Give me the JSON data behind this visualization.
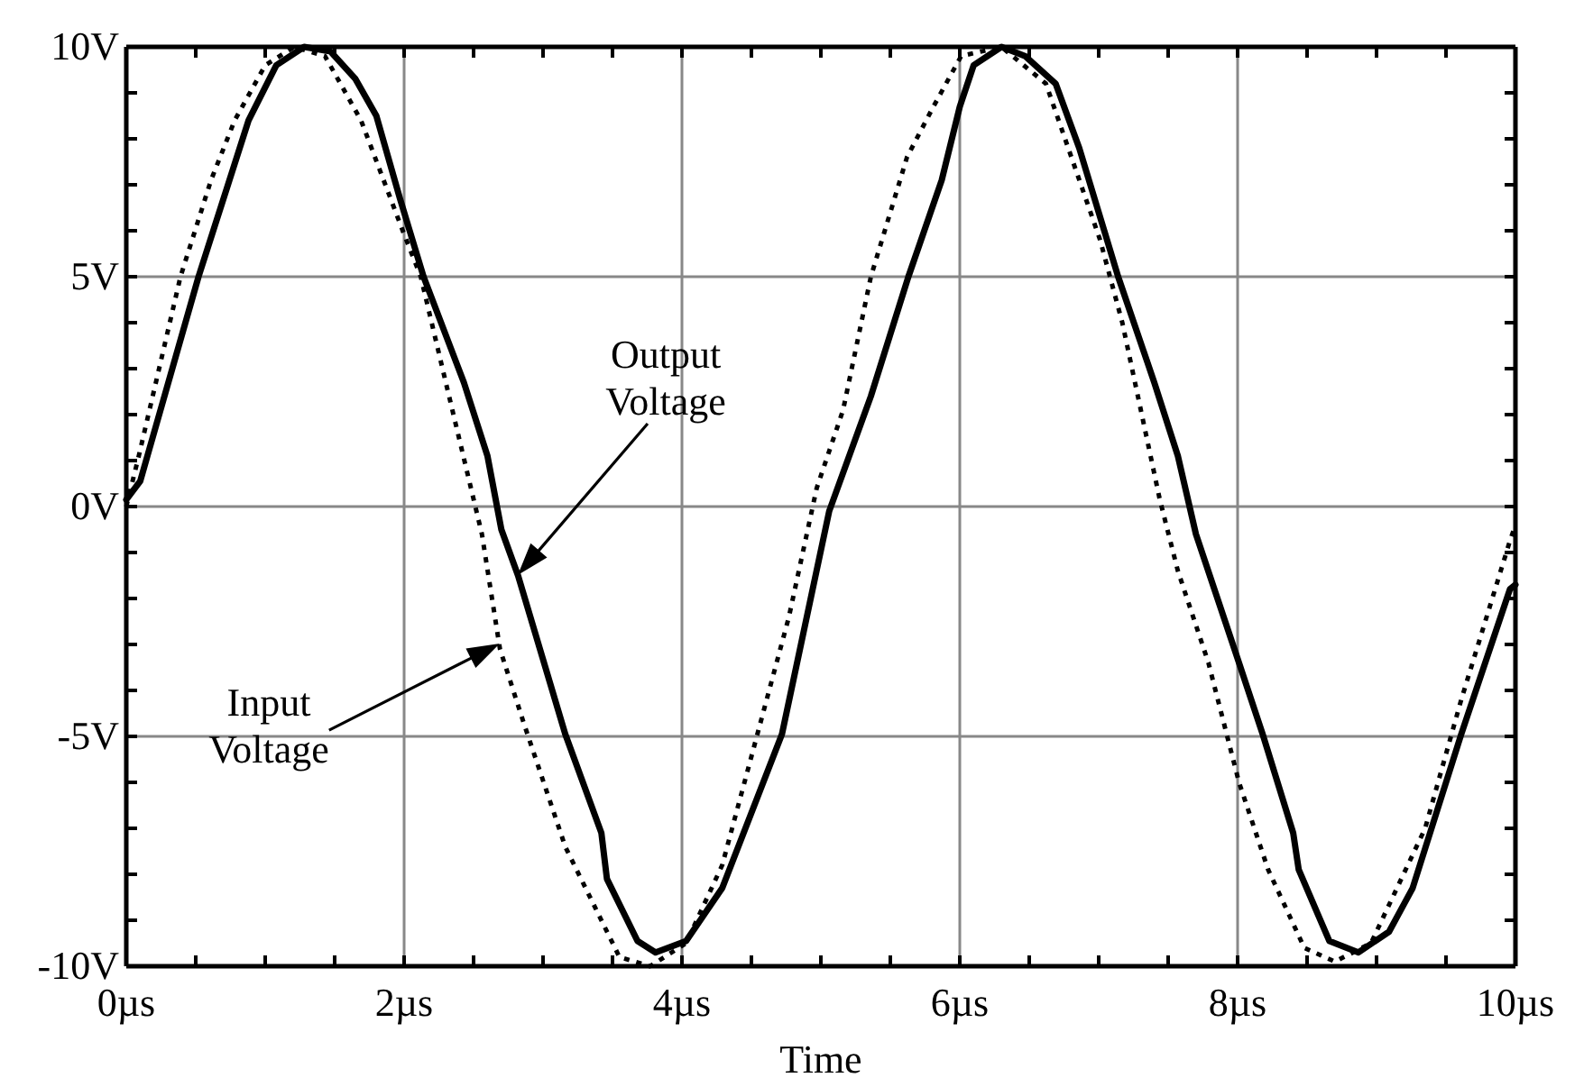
{
  "chart_data": {
    "type": "line",
    "xlabel": "Time",
    "xlim": [
      0,
      10
    ],
    "ylim": [
      -10,
      10
    ],
    "xticks": [
      {
        "value": 0,
        "label": "0µs"
      },
      {
        "value": 0.5,
        "label": null
      },
      {
        "value": 1,
        "label": null
      },
      {
        "value": 1.5,
        "label": null
      },
      {
        "value": 2,
        "label": "2µs"
      },
      {
        "value": 2.5,
        "label": null
      },
      {
        "value": 3,
        "label": null
      },
      {
        "value": 3.5,
        "label": null
      },
      {
        "value": 4,
        "label": "4µs"
      },
      {
        "value": 4.5,
        "label": null
      },
      {
        "value": 5,
        "label": null
      },
      {
        "value": 5.5,
        "label": null
      },
      {
        "value": 6,
        "label": "6µs"
      },
      {
        "value": 6.5,
        "label": null
      },
      {
        "value": 7,
        "label": null
      },
      {
        "value": 7.5,
        "label": null
      },
      {
        "value": 8,
        "label": "8µs"
      },
      {
        "value": 8.5,
        "label": null
      },
      {
        "value": 9,
        "label": null
      },
      {
        "value": 9.5,
        "label": null
      },
      {
        "value": 10,
        "label": "10µs"
      }
    ],
    "yticks": [
      {
        "value": -10,
        "label": "-10V"
      },
      {
        "value": -9,
        "label": null
      },
      {
        "value": -8,
        "label": null
      },
      {
        "value": -7,
        "label": null
      },
      {
        "value": -6,
        "label": null
      },
      {
        "value": -5,
        "label": "-5V"
      },
      {
        "value": -4,
        "label": null
      },
      {
        "value": -3,
        "label": null
      },
      {
        "value": -2,
        "label": null
      },
      {
        "value": -1,
        "label": null
      },
      {
        "value": 0,
        "label": "0V"
      },
      {
        "value": 1,
        "label": null
      },
      {
        "value": 2,
        "label": null
      },
      {
        "value": 3,
        "label": null
      },
      {
        "value": 4,
        "label": null
      },
      {
        "value": 5,
        "label": "5V"
      },
      {
        "value": 6,
        "label": null
      },
      {
        "value": 7,
        "label": null
      },
      {
        "value": 8,
        "label": null
      },
      {
        "value": 9,
        "label": null
      },
      {
        "value": 10,
        "label": "10V"
      }
    ],
    "grid": true,
    "series": [
      {
        "color": "#000000",
        "line_style": "solid",
        "x": [
          0,
          0.1,
          0.52,
          0.88,
          1.08,
          1.28,
          1.47,
          1.65,
          1.8,
          1.97,
          2.14,
          2.43,
          2.6,
          2.7,
          2.82,
          3.16,
          3.42,
          3.46,
          3.68,
          3.81,
          4.03,
          4.29,
          4.72,
          5.06,
          5.36,
          5.63,
          5.87,
          6.0,
          6.1,
          6.3,
          6.47,
          6.69,
          6.86,
          7.14,
          7.4,
          7.57,
          7.7,
          8.01,
          8.18,
          8.4,
          8.44,
          8.66,
          8.87,
          9.09,
          9.26,
          9.61,
          9.96,
          10
        ],
        "values": [
          0.15,
          0.55,
          5.0,
          8.4,
          9.6,
          10.0,
          9.9,
          9.3,
          8.5,
          6.7,
          5.0,
          2.7,
          1.1,
          -0.5,
          -1.5,
          -4.95,
          -7.1,
          -8.1,
          -9.45,
          -9.7,
          -9.45,
          -8.3,
          -4.95,
          -0.1,
          2.4,
          5.0,
          7.1,
          8.7,
          9.6,
          10.0,
          9.8,
          9.2,
          7.8,
          5.0,
          2.7,
          1.1,
          -0.6,
          -3.4,
          -4.95,
          -7.1,
          -7.9,
          -9.45,
          -9.7,
          -9.25,
          -8.3,
          -4.95,
          -1.8,
          -1.7
        ]
      },
      {
        "color": "#000000",
        "line_style": "dotted",
        "x": [
          0,
          0.09,
          0.39,
          0.61,
          0.78,
          1.0,
          1.21,
          1.43,
          1.69,
          1.99,
          2.12,
          2.3,
          2.56,
          2.69,
          2.86,
          3.16,
          3.55,
          3.77,
          4.03,
          4.29,
          4.77,
          4.97,
          5.16,
          5.36,
          5.62,
          5.81,
          6.01,
          6.3,
          6.62,
          7.01,
          7.17,
          7.44,
          7.57,
          7.79,
          8.01,
          8.22,
          8.48,
          8.7,
          8.96,
          9.35,
          9.61,
          9.96,
          10
        ],
        "values": [
          0,
          1.1,
          5.0,
          7.1,
          8.4,
          9.6,
          10.0,
          9.8,
          8.4,
          6.0,
          5.0,
          2.7,
          -0.6,
          -3.1,
          -4.7,
          -7.4,
          -9.8,
          -10.0,
          -9.5,
          -7.8,
          -2.4,
          0.4,
          2.1,
          5.0,
          7.6,
          8.7,
          9.8,
          10.0,
          9.2,
          5.8,
          4.0,
          0.15,
          -1.4,
          -3.4,
          -6.0,
          -7.9,
          -9.6,
          -9.9,
          -9.5,
          -7.0,
          -4.2,
          -0.75,
          -0.4
        ]
      }
    ],
    "annotations": [
      "Output Voltage",
      "Input Voltage"
    ]
  }
}
